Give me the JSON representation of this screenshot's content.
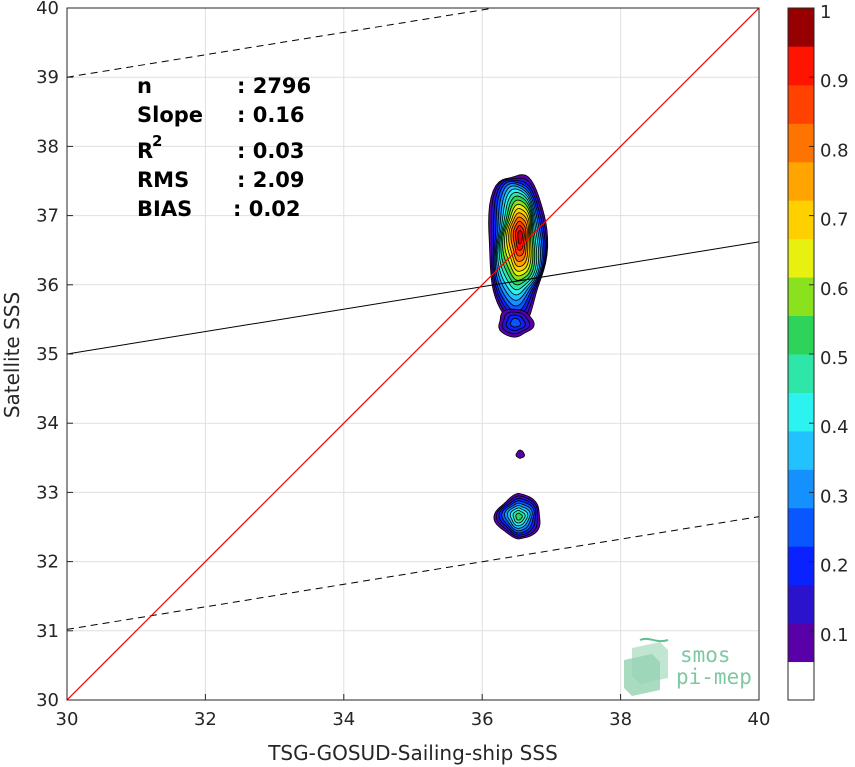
{
  "chart_data": {
    "type": "density-scatter",
    "xlabel": "TSG-GOSUD-Sailing-ship SSS",
    "ylabel": "Satellite SSS",
    "xlim": [
      30,
      40
    ],
    "ylim": [
      30,
      40
    ],
    "xticks": [
      "30",
      "32",
      "34",
      "36",
      "38",
      "40"
    ],
    "yticks": [
      "30",
      "31",
      "32",
      "33",
      "34",
      "35",
      "36",
      "37",
      "38",
      "39",
      "40"
    ],
    "grid": true,
    "stats": [
      {
        "label": "n",
        "value": ": 2796"
      },
      {
        "label": "Slope",
        "value": ": 0.16"
      },
      {
        "label": "R",
        "sup": "2",
        "value": ": 0.03"
      },
      {
        "label": "RMS",
        "value": ": 2.09"
      },
      {
        "label": "BIAS",
        "value": ": 0.02"
      }
    ],
    "lines": {
      "identity": {
        "x": [
          30,
          40
        ],
        "y": [
          30,
          40
        ],
        "color": "#ff0000"
      },
      "regression": {
        "x": [
          30,
          40
        ],
        "y": [
          35.0,
          36.62
        ],
        "color": "#000000"
      },
      "upper_dashed": {
        "x": [
          30,
          40
        ],
        "y": [
          39.0,
          40.62
        ],
        "color": "#000000"
      },
      "lower_dashed": {
        "x": [
          30,
          40
        ],
        "y": [
          31.02,
          32.65
        ],
        "color": "#000000"
      }
    },
    "density_clusters": [
      {
        "name": "main",
        "cx": 36.5,
        "cy": 36.55,
        "rx": 0.42,
        "ry": 1.1,
        "peak": 0.97,
        "peak_x": 36.55,
        "peak_y": 36.7
      },
      {
        "name": "tail",
        "cx": 36.48,
        "cy": 35.45,
        "rx": 0.25,
        "ry": 0.2,
        "peak": 0.22
      },
      {
        "name": "small",
        "cx": 36.55,
        "cy": 33.55,
        "rx": 0.06,
        "ry": 0.06,
        "peak": 0.08
      },
      {
        "name": "lower",
        "cx": 36.53,
        "cy": 32.65,
        "rx": 0.33,
        "ry": 0.33,
        "peak": 0.52
      }
    ],
    "colorbar": {
      "range": [
        0,
        1
      ],
      "ticks": [
        "0.1",
        "0.2",
        "0.3",
        "0.4",
        "0.5",
        "0.6",
        "0.7",
        "0.8",
        "0.9",
        "1"
      ],
      "levels": [
        "#ffffff",
        "#5a00a8",
        "#2b12cc",
        "#0a22ff",
        "#0a56ff",
        "#1590ff",
        "#23c2ff",
        "#2cf2f0",
        "#2ee6a8",
        "#2ed45a",
        "#8ae21e",
        "#e8f010",
        "#ffd000",
        "#ffa400",
        "#ff7400",
        "#ff4200",
        "#ff1400",
        "#dd0000",
        "#960000"
      ]
    }
  },
  "logo": {
    "line1": "smos",
    "line2": "pi-mep"
  }
}
